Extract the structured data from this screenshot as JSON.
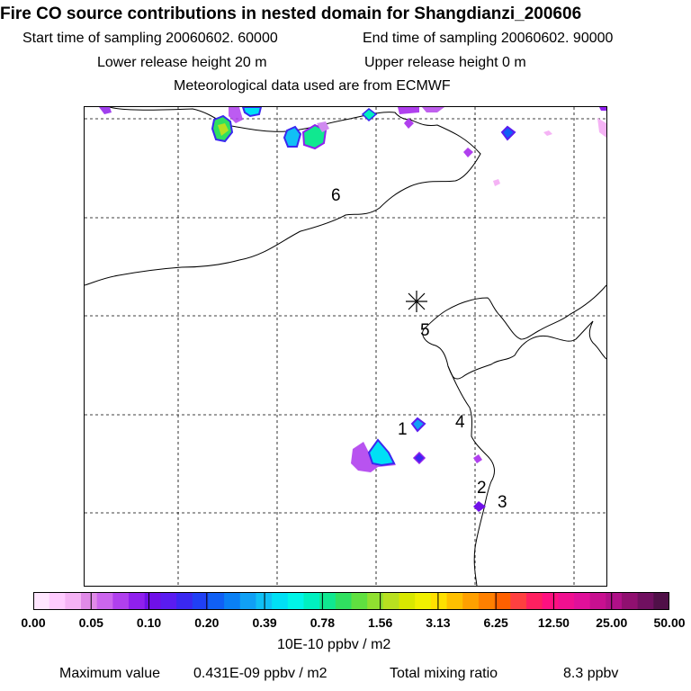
{
  "header": {
    "title": "Fire CO source contributions in nested domain for Shangdianzi_200606",
    "start_label": "Start time of sampling 20060602. 60000",
    "end_label": "End time of sampling 20060602. 90000",
    "lower_label": "Lower release height   20 m",
    "upper_label": "Upper release height    0 m",
    "met_label": "Meteorological data used are from ECMWF"
  },
  "map": {
    "markers": [
      {
        "id": "6",
        "label": "6"
      },
      {
        "id": "5",
        "label": "5"
      },
      {
        "id": "4",
        "label": "4"
      },
      {
        "id": "3",
        "label": "3"
      },
      {
        "id": "2",
        "label": "2"
      },
      {
        "id": "1",
        "label": "1"
      }
    ],
    "receptor_symbol": "asterisk"
  },
  "legend": {
    "tick_labels": [
      "0.00",
      "0.05",
      "0.10",
      "0.20",
      "0.39",
      "0.78",
      "1.56",
      "3.13",
      "6.25",
      "12.50",
      "25.00",
      "50.00"
    ],
    "units": "10E-10 ppbv / m2",
    "colors": [
      "#ffe6ff",
      "#ffccff",
      "#f5b3f5",
      "#e08ae8",
      "#cc66ee",
      "#b040ee",
      "#9020ee",
      "#7010e8",
      "#5a1cf0",
      "#3a28f0",
      "#2040f5",
      "#1060f5",
      "#0a80f5",
      "#10a0f5",
      "#10c0f5",
      "#00e0f5",
      "#00f5e8",
      "#00f0c0",
      "#10e890",
      "#30e060",
      "#60e040",
      "#90e030",
      "#b8e020",
      "#d8e800",
      "#f0f000",
      "#ffe000",
      "#ffc000",
      "#ffa000",
      "#ff8000",
      "#ff6000",
      "#ff4040",
      "#ff2060",
      "#ff1080",
      "#f01090",
      "#e0109a",
      "#c81090",
      "#b01088",
      "#901070",
      "#701060",
      "#501048"
    ]
  },
  "footer": {
    "max_label": "Maximum value",
    "max_value": "0.431E-09 ppbv / m2",
    "total_label": "Total mixing ratio",
    "total_value": "8.3 ppbv"
  }
}
